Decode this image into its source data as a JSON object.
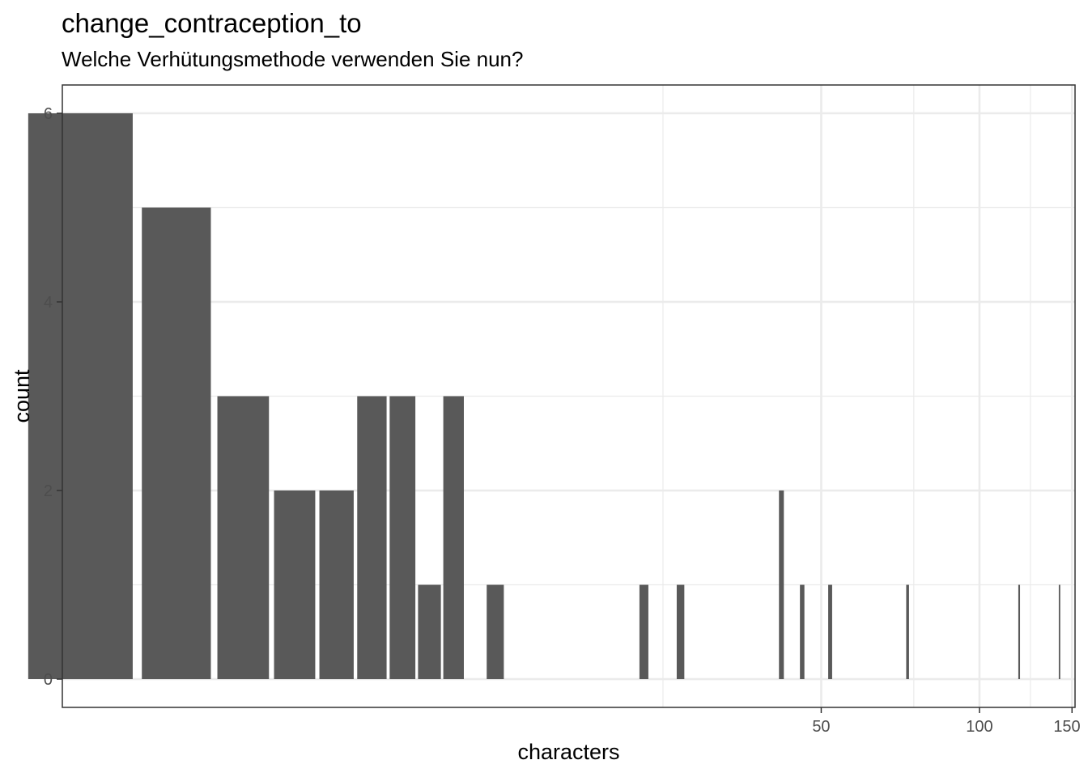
{
  "chart_data": {
    "type": "bar",
    "title": "change_contraception_to",
    "subtitle": "Welche Verhütungsmethode verwenden Sie nun?",
    "xlabel": "characters",
    "ylabel": "count",
    "x_scale": "log10",
    "xlim": [
      1.8,
      152
    ],
    "ylim": [
      -0.3,
      6.3
    ],
    "x_major_ticks": [
      50,
      100,
      150
    ],
    "x_minor_ticks": [
      25,
      75,
      125
    ],
    "y_major_ticks": [
      0,
      2,
      4,
      6
    ],
    "y_minor_ticks": [
      1,
      3,
      5
    ],
    "grid": true,
    "bar_color": "#595959",
    "bars": [
      {
        "x": 2,
        "y": 6
      },
      {
        "x": 3,
        "y": 5
      },
      {
        "x": 4,
        "y": 3
      },
      {
        "x": 5,
        "y": 2
      },
      {
        "x": 6,
        "y": 2
      },
      {
        "x": 7,
        "y": 3
      },
      {
        "x": 8,
        "y": 3
      },
      {
        "x": 9,
        "y": 1
      },
      {
        "x": 10,
        "y": 3
      },
      {
        "x": 12,
        "y": 1
      },
      {
        "x": 23,
        "y": 1
      },
      {
        "x": 27,
        "y": 1
      },
      {
        "x": 42,
        "y": 2
      },
      {
        "x": 46,
        "y": 1
      },
      {
        "x": 52,
        "y": 1
      },
      {
        "x": 73,
        "y": 1
      },
      {
        "x": 119,
        "y": 1
      },
      {
        "x": 142,
        "y": 1
      }
    ]
  }
}
